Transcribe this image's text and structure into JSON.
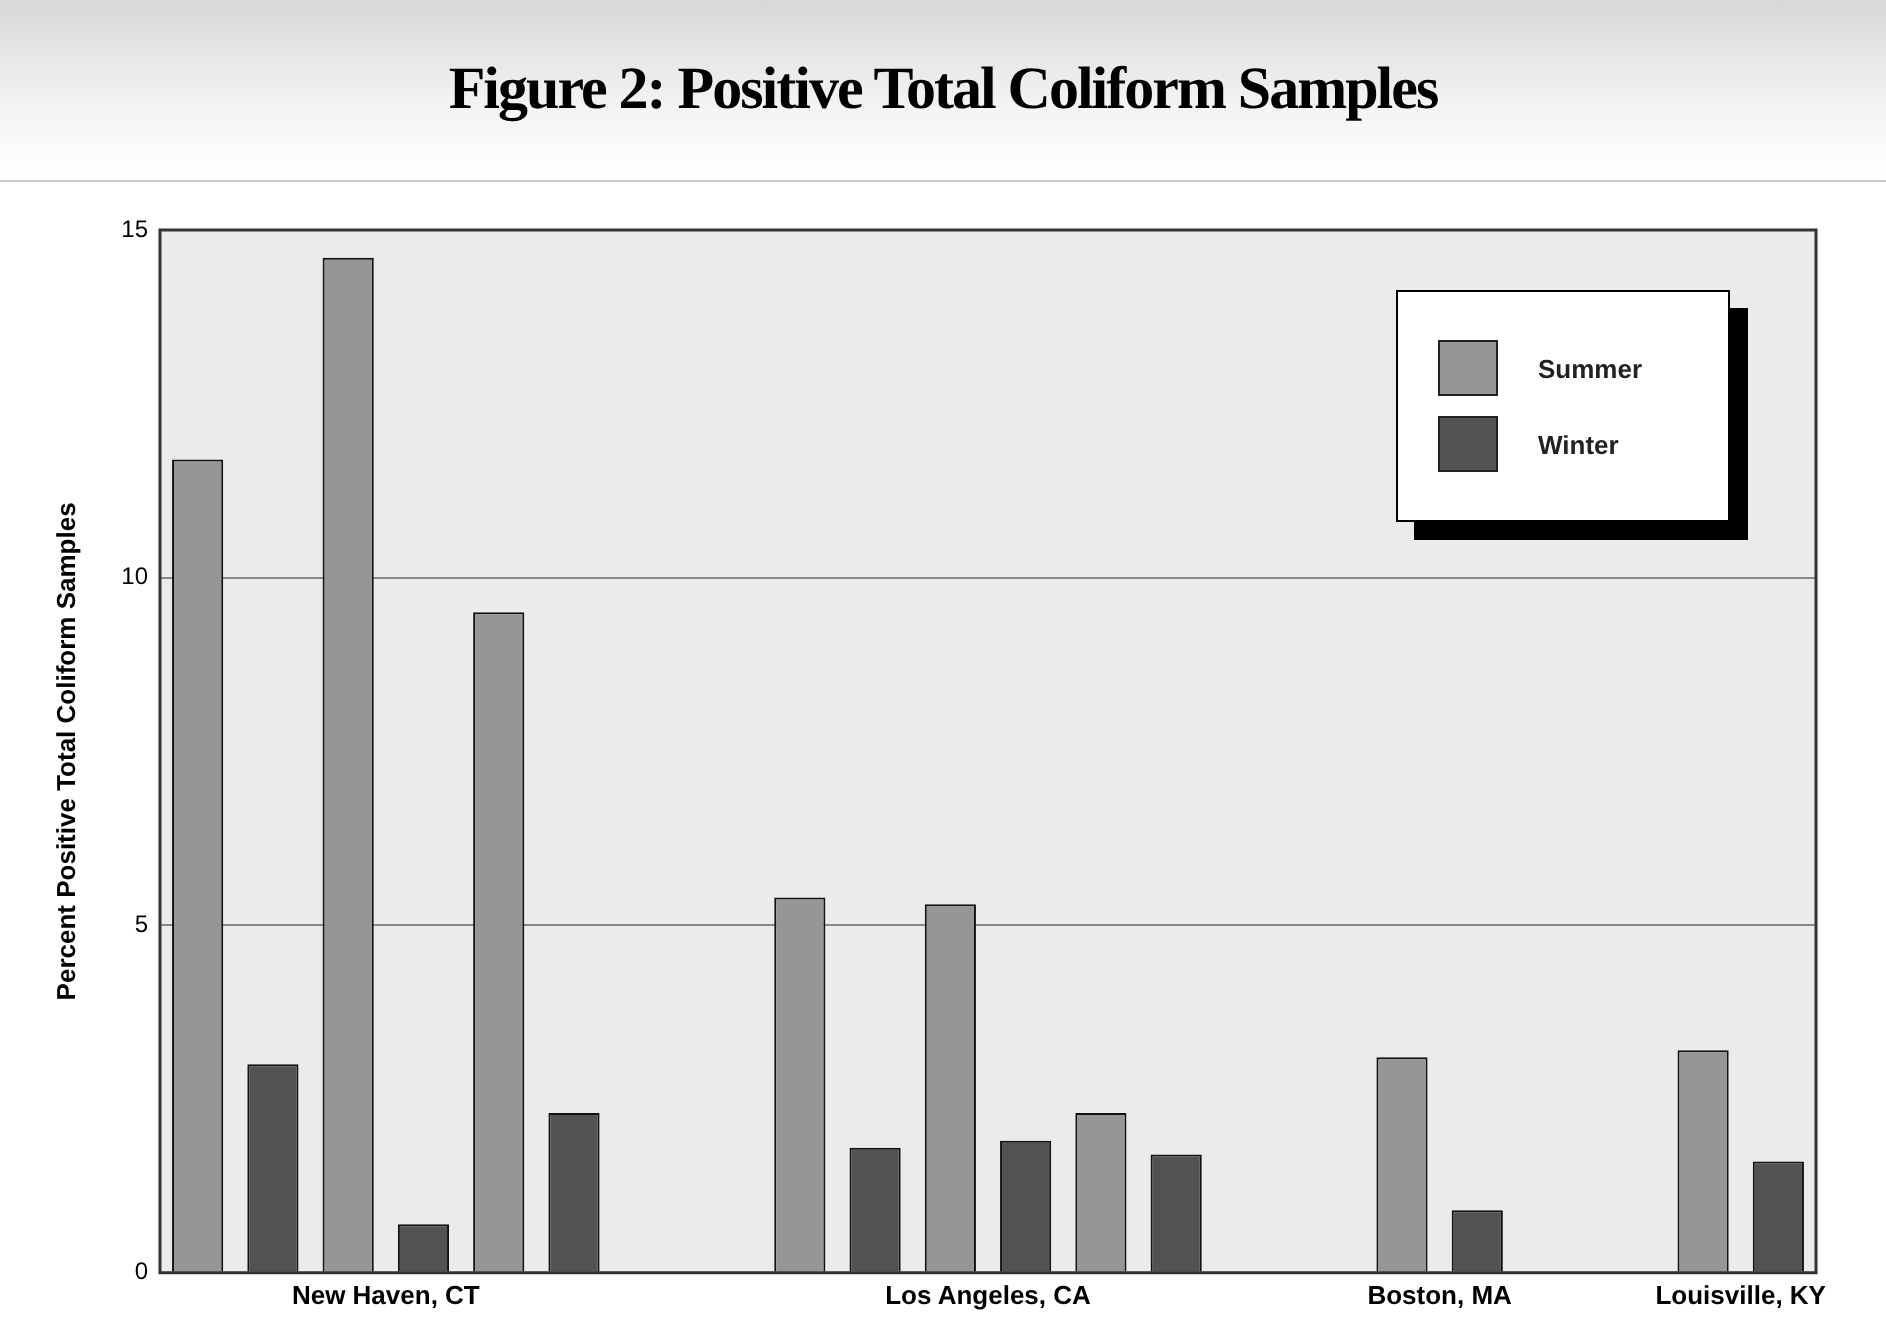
{
  "chart_data": {
    "type": "bar",
    "title": "Figure 2: Positive Total Coliform Samples",
    "ylabel": "Percent Positive Total Coliform Samples",
    "categories": [
      null,
      "New Haven, CT",
      null,
      null,
      null,
      "Los Angeles, CA",
      null,
      null,
      "Boston, MA",
      null,
      "Louisville, KY"
    ],
    "series": [
      {
        "name": "Summer",
        "color": "#969696",
        "values": [
          11.7,
          14.6,
          9.5,
          null,
          5.4,
          5.3,
          2.3,
          null,
          3.1,
          null,
          3.2
        ]
      },
      {
        "name": "Winter",
        "color": "#525252",
        "values": [
          3.0,
          0.7,
          2.3,
          null,
          1.8,
          1.9,
          1.7,
          null,
          0.9,
          null,
          1.6
        ]
      }
    ],
    "ylim": [
      0,
      15
    ],
    "yticks": [
      0,
      5,
      10,
      15
    ],
    "grid": "y",
    "legend": "top right"
  }
}
